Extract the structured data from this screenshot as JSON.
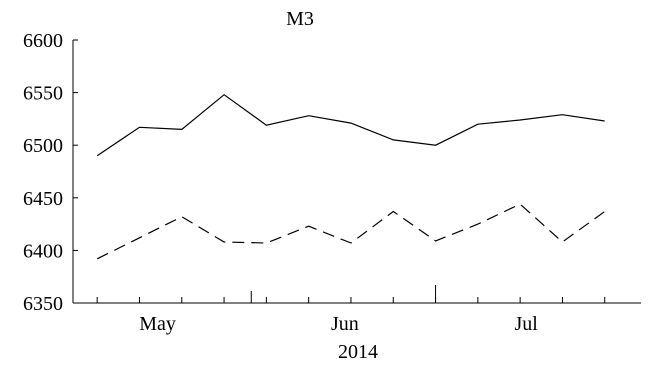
{
  "chart_data": {
    "type": "line",
    "title": "M3",
    "xlabel": "2014",
    "ylabel": "",
    "x": [
      "2014-04-21",
      "2014-04-28",
      "2014-05-05",
      "2014-05-12",
      "2014-05-19",
      "2014-05-26",
      "2014-06-02",
      "2014-06-09",
      "2014-06-16",
      "2014-06-23",
      "2014-06-30",
      "2014-07-07",
      "2014-07-14"
    ],
    "xlim": [
      "2014-04-17",
      "2014-07-20"
    ],
    "x_ticks": [
      {
        "date": "2014-05-01",
        "label": "May"
      },
      {
        "date": "2014-06-01",
        "label": "Jun"
      },
      {
        "date": "2014-07-01",
        "label": "Jul"
      }
    ],
    "ylim": [
      6350,
      6600
    ],
    "y_ticks": [
      "6350",
      "6400",
      "6450",
      "6500",
      "6550",
      "6600"
    ],
    "grid": false,
    "series": [
      {
        "style": "solid",
        "color": "#000000",
        "values": [
          6490,
          6517,
          6515,
          6548,
          6519,
          6528,
          6521,
          6505,
          6500,
          6520,
          6524,
          6529,
          6523
        ]
      },
      {
        "style": "dashed",
        "color": "#000000",
        "values": [
          6392,
          6412,
          6432,
          6408,
          6407,
          6423,
          6407,
          6437,
          6409,
          6425,
          6444,
          6408,
          6437
        ]
      }
    ]
  }
}
